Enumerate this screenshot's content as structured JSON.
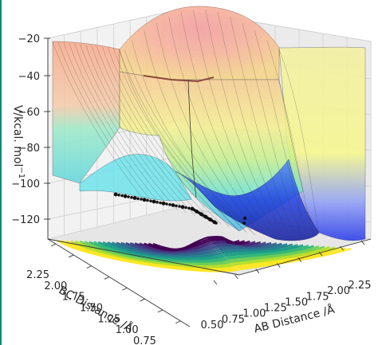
{
  "chart_data": {
    "type": "surface3d",
    "title": "",
    "zlabel": "V/kcal. mol$^{-1}$",
    "zlabel_prefix": "V/kcal. mol",
    "zlabel_superscript": "−1",
    "xlabel": "AB Distance /Å",
    "ylabel": "BC Distance /Å",
    "z_ticks": [
      "−20",
      "−40",
      "−60",
      "−80",
      "−100",
      "−120"
    ],
    "x_ticks": [
      "0.50",
      "0.75",
      "1.00",
      "1.25",
      "1.50",
      "1.75",
      "2.00",
      "2.25"
    ],
    "y_ticks": [
      "2.25",
      "2.00",
      "1.75",
      "1.50",
      "1.25",
      "1.00",
      "0.75",
      "0.50"
    ],
    "z_range": [
      -135,
      -18
    ],
    "x_range": [
      0.5,
      2.35
    ],
    "y_range": [
      0.5,
      2.35
    ],
    "colormap_surface": "jet",
    "colormap_contour": "viridis",
    "grid": true,
    "legend": "none",
    "trajectory": "black dotted path on the surface in the entrance/exit valleys"
  }
}
